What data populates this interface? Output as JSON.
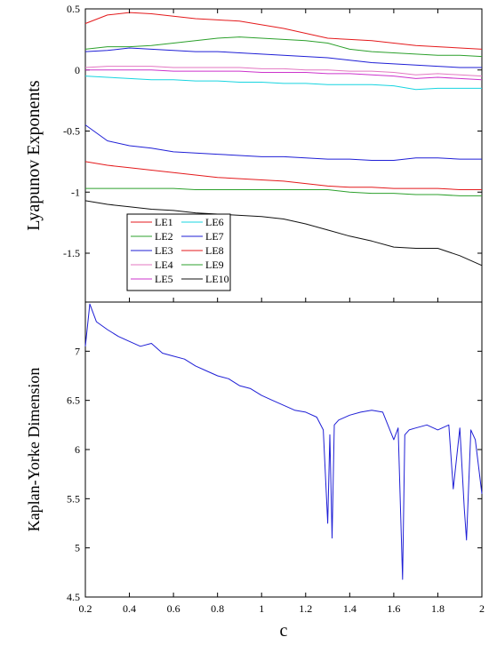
{
  "chart_data": [
    {
      "type": "line",
      "panel": "top",
      "title": "",
      "xlabel": "",
      "ylabel": "Lyapunov Exponents",
      "xlim": [
        0.2,
        2
      ],
      "ylim": [
        -1.9,
        0.5
      ],
      "yticks": [
        0.5,
        0,
        -0.5,
        -1,
        -1.5
      ],
      "ytick_labels": [
        "0.5",
        "0",
        "-0.5",
        "-1",
        "-1.5"
      ],
      "grid": false,
      "legend_position": "lower-left",
      "legend_columns": 2,
      "x": [
        0.2,
        0.3,
        0.4,
        0.5,
        0.6,
        0.7,
        0.8,
        0.9,
        1.0,
        1.1,
        1.2,
        1.3,
        1.4,
        1.5,
        1.6,
        1.7,
        1.8,
        1.9,
        2.0
      ],
      "series": [
        {
          "name": "LE1",
          "color": "#e41a1c",
          "values": [
            0.38,
            0.45,
            0.47,
            0.46,
            0.44,
            0.42,
            0.41,
            0.4,
            0.37,
            0.34,
            0.3,
            0.26,
            0.25,
            0.24,
            0.22,
            0.2,
            0.19,
            0.18,
            0.17
          ]
        },
        {
          "name": "LE2",
          "color": "#2ca02c",
          "values": [
            0.17,
            0.19,
            0.19,
            0.2,
            0.22,
            0.24,
            0.26,
            0.27,
            0.26,
            0.25,
            0.24,
            0.22,
            0.17,
            0.15,
            0.14,
            0.13,
            0.12,
            0.12,
            0.11
          ]
        },
        {
          "name": "LE3",
          "color": "#1f1fd6",
          "values": [
            0.15,
            0.16,
            0.18,
            0.17,
            0.16,
            0.15,
            0.15,
            0.14,
            0.13,
            0.12,
            0.11,
            0.1,
            0.08,
            0.06,
            0.05,
            0.04,
            0.03,
            0.02,
            0.02
          ]
        },
        {
          "name": "LE4",
          "color": "#e377c2",
          "values": [
            0.02,
            0.03,
            0.03,
            0.03,
            0.02,
            0.02,
            0.02,
            0.02,
            0.01,
            0.01,
            0.0,
            0.0,
            -0.01,
            -0.01,
            -0.02,
            -0.04,
            -0.03,
            -0.04,
            -0.05
          ]
        },
        {
          "name": "LE5",
          "color": "#cc33cc",
          "values": [
            0.0,
            0.0,
            0.0,
            0.0,
            -0.01,
            -0.01,
            -0.01,
            -0.01,
            -0.02,
            -0.02,
            -0.02,
            -0.03,
            -0.03,
            -0.04,
            -0.05,
            -0.07,
            -0.06,
            -0.07,
            -0.08
          ]
        },
        {
          "name": "LE6",
          "color": "#17d4e0",
          "values": [
            -0.05,
            -0.06,
            -0.07,
            -0.08,
            -0.08,
            -0.09,
            -0.09,
            -0.1,
            -0.1,
            -0.11,
            -0.11,
            -0.12,
            -0.12,
            -0.12,
            -0.13,
            -0.16,
            -0.15,
            -0.15,
            -0.15
          ]
        },
        {
          "name": "LE7",
          "color": "#1f1fd6",
          "values": [
            -0.45,
            -0.58,
            -0.62,
            -0.64,
            -0.67,
            -0.68,
            -0.69,
            -0.7,
            -0.71,
            -0.71,
            -0.72,
            -0.73,
            -0.73,
            -0.74,
            -0.74,
            -0.72,
            -0.72,
            -0.73,
            -0.73
          ]
        },
        {
          "name": "LE8",
          "color": "#e41a1c",
          "values": [
            -0.75,
            -0.78,
            -0.8,
            -0.82,
            -0.84,
            -0.86,
            -0.88,
            -0.89,
            -0.9,
            -0.91,
            -0.93,
            -0.95,
            -0.96,
            -0.96,
            -0.97,
            -0.97,
            -0.97,
            -0.98,
            -0.98
          ]
        },
        {
          "name": "LE9",
          "color": "#2ca02c",
          "values": [
            -0.97,
            -0.97,
            -0.97,
            -0.97,
            -0.97,
            -0.98,
            -0.98,
            -0.98,
            -0.98,
            -0.98,
            -0.98,
            -0.98,
            -1.0,
            -1.01,
            -1.01,
            -1.02,
            -1.02,
            -1.03,
            -1.03
          ]
        },
        {
          "name": "LE10",
          "color": "#111111",
          "values": [
            -1.07,
            -1.1,
            -1.12,
            -1.14,
            -1.15,
            -1.17,
            -1.18,
            -1.19,
            -1.2,
            -1.22,
            -1.26,
            -1.31,
            -1.36,
            -1.4,
            -1.45,
            -1.46,
            -1.46,
            -1.52,
            -1.6
          ]
        }
      ]
    },
    {
      "type": "line",
      "panel": "bottom",
      "title": "",
      "xlabel": "c",
      "ylabel": "Kaplan-Yorke Dimension",
      "xlim": [
        0.2,
        2
      ],
      "ylim": [
        4.5,
        7.5
      ],
      "yticks": [
        4.5,
        5,
        5.5,
        6,
        6.5,
        7
      ],
      "ytick_labels": [
        "4.5",
        "5",
        "5.5",
        "6",
        "6.5",
        "7"
      ],
      "xticks": [
        0.2,
        0.4,
        0.6,
        0.8,
        1,
        1.2,
        1.4,
        1.6,
        1.8,
        2
      ],
      "xtick_labels": [
        "0.2",
        "0.4",
        "0.6",
        "0.8",
        "1",
        "1.2",
        "1.4",
        "1.6",
        "1.8",
        "2"
      ],
      "grid": false,
      "x": [
        0.2,
        0.22,
        0.25,
        0.3,
        0.35,
        0.4,
        0.45,
        0.5,
        0.55,
        0.6,
        0.65,
        0.7,
        0.75,
        0.8,
        0.85,
        0.9,
        0.95,
        1.0,
        1.05,
        1.1,
        1.15,
        1.2,
        1.25,
        1.28,
        1.3,
        1.31,
        1.32,
        1.33,
        1.35,
        1.4,
        1.45,
        1.5,
        1.55,
        1.6,
        1.62,
        1.64,
        1.65,
        1.67,
        1.7,
        1.75,
        1.8,
        1.85,
        1.87,
        1.9,
        1.92,
        1.93,
        1.95,
        1.97,
        2.0
      ],
      "series": [
        {
          "name": "",
          "color": "#1f1fd6",
          "values": [
            7.05,
            7.48,
            7.3,
            7.22,
            7.15,
            7.1,
            7.05,
            7.08,
            6.98,
            6.95,
            6.92,
            6.85,
            6.8,
            6.75,
            6.72,
            6.65,
            6.62,
            6.55,
            6.5,
            6.45,
            6.4,
            6.38,
            6.33,
            6.2,
            5.25,
            6.15,
            5.1,
            6.25,
            6.3,
            6.35,
            6.38,
            6.4,
            6.38,
            6.1,
            6.22,
            4.68,
            6.15,
            6.2,
            6.22,
            6.25,
            6.2,
            6.25,
            5.6,
            6.22,
            5.4,
            5.08,
            6.2,
            6.1,
            5.55
          ]
        }
      ]
    }
  ]
}
